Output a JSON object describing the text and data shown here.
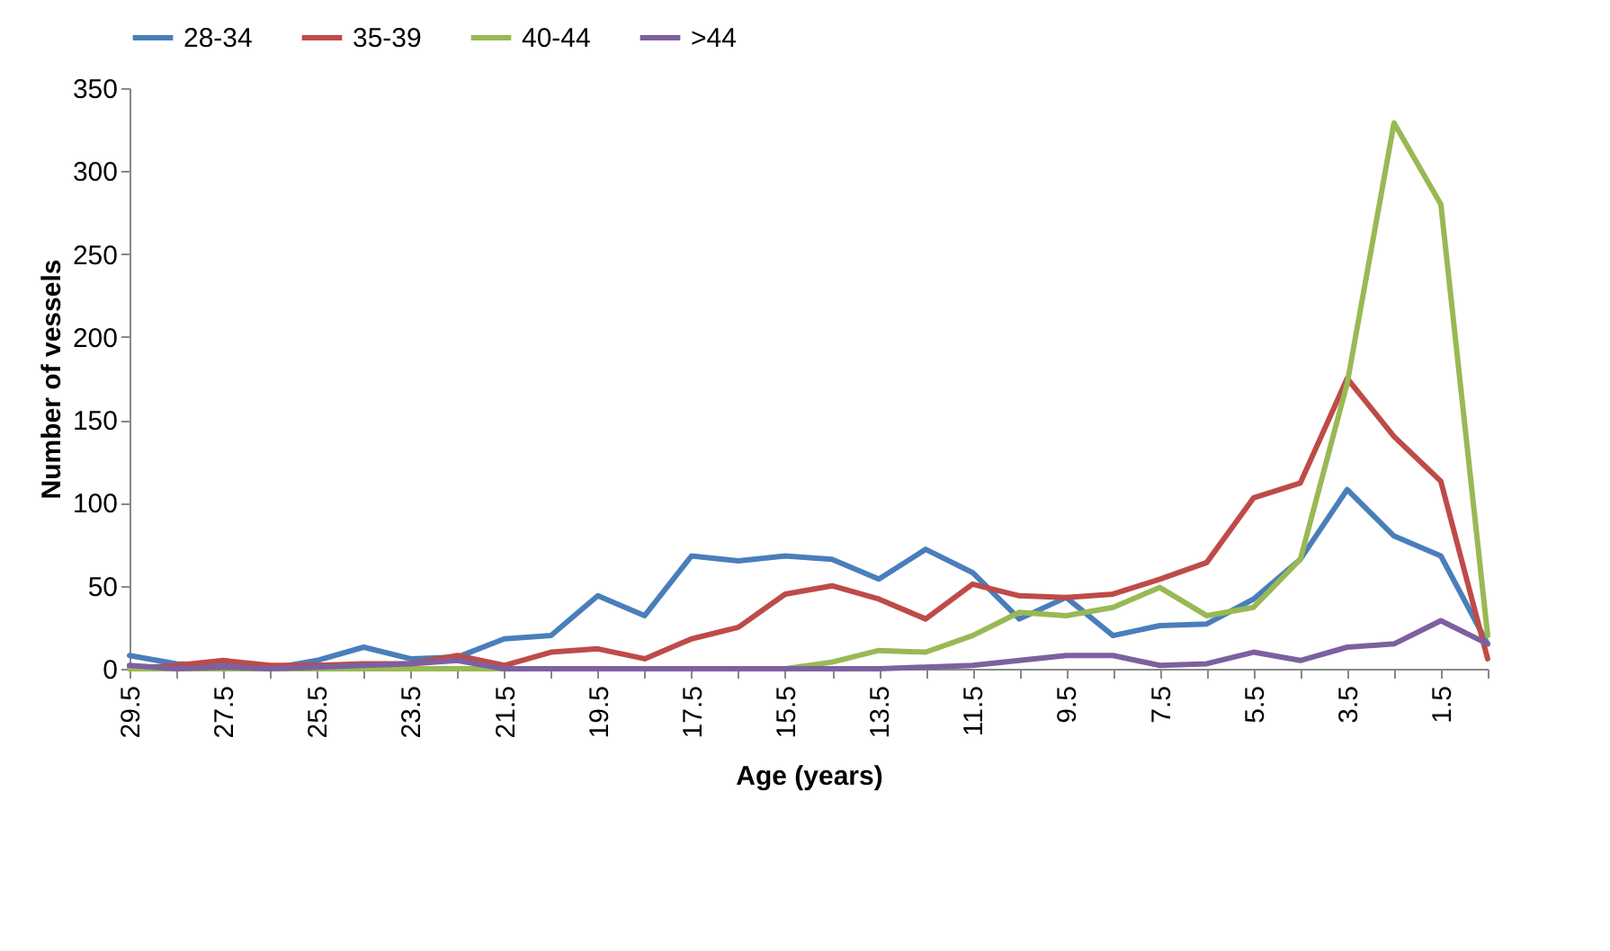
{
  "chart_data": {
    "type": "line",
    "xlabel": "Age (years)",
    "ylabel": "Number of vessels",
    "categories": [
      "29.5",
      null,
      "27.5",
      null,
      "25.5",
      null,
      "23.5",
      null,
      "21.5",
      null,
      "19.5",
      null,
      "17.5",
      null,
      "15.5",
      null,
      "13.5",
      null,
      "11.5",
      null,
      "9.5",
      null,
      "7.5",
      null,
      "5.5",
      null,
      "3.5",
      null,
      "1.5",
      null
    ],
    "series": [
      {
        "name": "28-34",
        "color": "#4a7ebb",
        "values": [
          8,
          3,
          2,
          0,
          5,
          13,
          6,
          7,
          18,
          20,
          44,
          32,
          68,
          65,
          68,
          66,
          54,
          72,
          58,
          30,
          43,
          20,
          26,
          27,
          42,
          66,
          108,
          80,
          68,
          15
        ]
      },
      {
        "name": "35-39",
        "color": "#be4b48",
        "values": [
          0,
          2,
          5,
          2,
          2,
          3,
          3,
          8,
          2,
          10,
          12,
          6,
          18,
          25,
          45,
          50,
          42,
          30,
          51,
          44,
          43,
          45,
          54,
          64,
          103,
          112,
          175,
          140,
          113,
          6
        ]
      },
      {
        "name": "40-44",
        "color": "#98b954",
        "values": [
          0,
          0,
          0,
          0,
          0,
          0,
          0,
          0,
          0,
          0,
          0,
          0,
          0,
          0,
          0,
          4,
          11,
          10,
          20,
          34,
          32,
          37,
          49,
          32,
          37,
          66,
          172,
          329,
          280,
          20
        ]
      },
      {
        "name": ">44",
        "color": "#7d60a0",
        "values": [
          2,
          0,
          1,
          0,
          1,
          2,
          3,
          5,
          0,
          0,
          0,
          0,
          0,
          0,
          0,
          0,
          0,
          1,
          2,
          5,
          8,
          8,
          2,
          3,
          10,
          5,
          13,
          15,
          29,
          15
        ]
      }
    ],
    "ylim": [
      0,
      350
    ],
    "yticks": [
      0,
      50,
      100,
      150,
      200,
      250,
      300,
      350
    ],
    "legend": "top",
    "line_style": "solid"
  }
}
